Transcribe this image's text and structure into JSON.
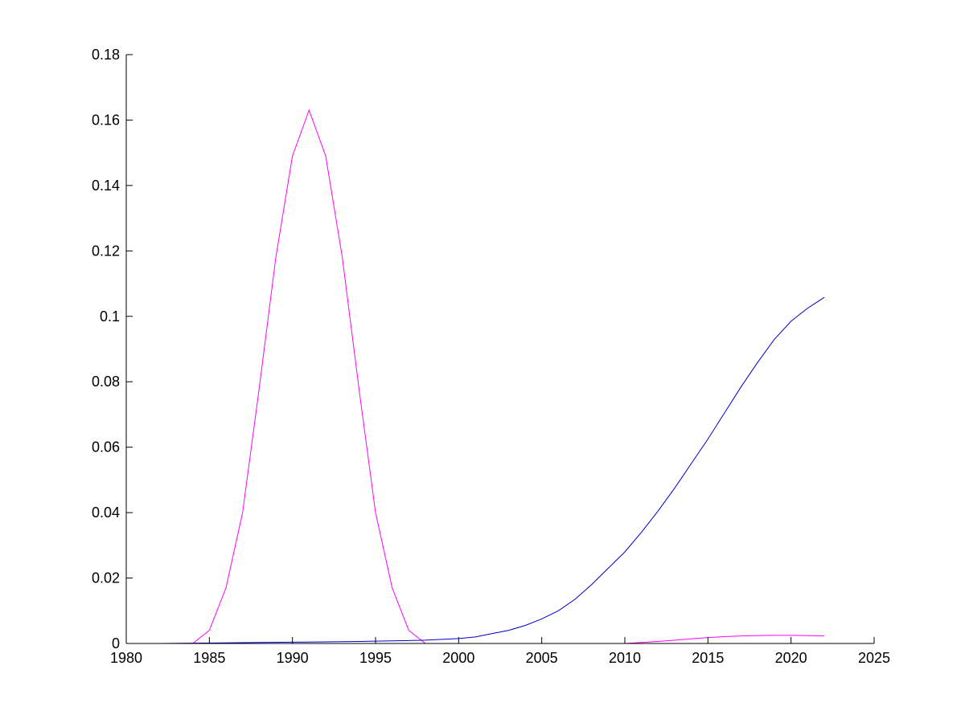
{
  "chart_data": {
    "type": "line",
    "title": "",
    "xlabel": "",
    "ylabel": "",
    "xlim": [
      1980,
      2025
    ],
    "ylim": [
      0,
      0.18
    ],
    "xticks": [
      1980,
      1985,
      1990,
      1995,
      2000,
      2005,
      2010,
      2015,
      2020,
      2025
    ],
    "xtick_labels": [
      "1980",
      "1985",
      "1990",
      "1995",
      "2000",
      "2005",
      "2010",
      "2015",
      "2020",
      "2025"
    ],
    "yticks": [
      0,
      0.02,
      0.04,
      0.06,
      0.08,
      0.1,
      0.12,
      0.14,
      0.16,
      0.18
    ],
    "ytick_labels": [
      "0",
      "0.02",
      "0.04",
      "0.06",
      "0.08",
      "0.1",
      "0.12",
      "0.14",
      "0.16",
      "0.18"
    ],
    "grid": false,
    "legend": "none",
    "series": [
      {
        "color": "#ff00ff",
        "points": [
          [
            1980,
            0
          ],
          [
            1981,
            0
          ],
          [
            1982,
            0
          ],
          [
            1983,
            0
          ],
          [
            1984,
            0
          ],
          [
            1985,
            0.004
          ],
          [
            1986,
            0.017
          ],
          [
            1987,
            0.04
          ],
          [
            1988,
            0.078
          ],
          [
            1989,
            0.118
          ],
          [
            1990,
            0.149
          ],
          [
            1991,
            0.163
          ],
          [
            1992,
            0.149
          ],
          [
            1993,
            0.118
          ],
          [
            1994,
            0.078
          ],
          [
            1995,
            0.04
          ],
          [
            1996,
            0.017
          ],
          [
            1997,
            0.004
          ],
          [
            1998,
            0
          ],
          [
            1999,
            0
          ],
          [
            2000,
            0
          ],
          [
            2001,
            0
          ],
          [
            2002,
            0
          ],
          [
            2003,
            0
          ],
          [
            2004,
            0
          ],
          [
            2005,
            0
          ],
          [
            2006,
            0
          ],
          [
            2007,
            0
          ],
          [
            2008,
            0
          ],
          [
            2009,
            0
          ],
          [
            2010,
            0
          ],
          [
            2011,
            0.0003
          ],
          [
            2012,
            0.0006
          ],
          [
            2013,
            0.001
          ],
          [
            2014,
            0.0014
          ],
          [
            2015,
            0.0018
          ],
          [
            2016,
            0.0021
          ],
          [
            2017,
            0.0023
          ],
          [
            2018,
            0.0024
          ],
          [
            2019,
            0.0025
          ],
          [
            2020,
            0.0025
          ],
          [
            2021,
            0.0024
          ],
          [
            2022,
            0.0023
          ]
        ]
      },
      {
        "color": "#0000cc",
        "points": [
          [
            1980,
            0
          ],
          [
            1982,
            0
          ],
          [
            1984,
            0.0001
          ],
          [
            1986,
            0.0002
          ],
          [
            1988,
            0.0003
          ],
          [
            1990,
            0.0004
          ],
          [
            1992,
            0.0005
          ],
          [
            1994,
            0.0006
          ],
          [
            1996,
            0.0008
          ],
          [
            1998,
            0.001
          ],
          [
            2000,
            0.0015
          ],
          [
            2001,
            0.002
          ],
          [
            2002,
            0.003
          ],
          [
            2003,
            0.004
          ],
          [
            2004,
            0.0055
          ],
          [
            2005,
            0.0075
          ],
          [
            2006,
            0.01
          ],
          [
            2007,
            0.0135
          ],
          [
            2008,
            0.018
          ],
          [
            2009,
            0.023
          ],
          [
            2010,
            0.028
          ],
          [
            2011,
            0.034
          ],
          [
            2012,
            0.0405
          ],
          [
            2013,
            0.0475
          ],
          [
            2014,
            0.055
          ],
          [
            2015,
            0.0625
          ],
          [
            2016,
            0.0705
          ],
          [
            2017,
            0.0785
          ],
          [
            2018,
            0.086
          ],
          [
            2019,
            0.093
          ],
          [
            2020,
            0.0985
          ],
          [
            2021,
            0.1025
          ],
          [
            2022,
            0.1058
          ]
        ]
      }
    ]
  }
}
